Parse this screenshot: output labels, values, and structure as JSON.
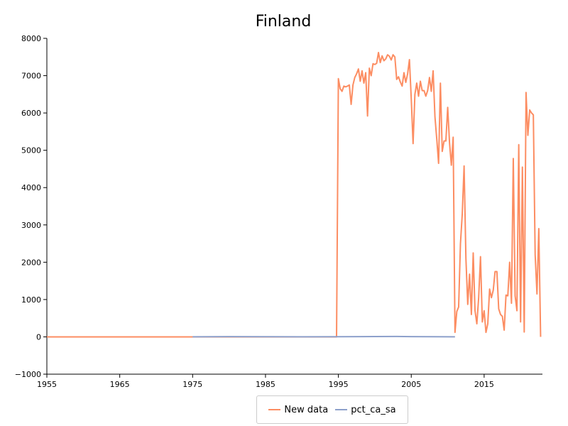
{
  "chart_data": {
    "type": "line",
    "title": "Finland",
    "xlabel": "",
    "ylabel": "",
    "xlim": [
      1955,
      2023
    ],
    "ylim": [
      -1000,
      8000
    ],
    "x_ticks": [
      1955,
      1965,
      1975,
      1985,
      1995,
      2005,
      2015
    ],
    "y_ticks": [
      -1000,
      0,
      1000,
      2000,
      3000,
      4000,
      5000,
      6000,
      7000,
      8000
    ],
    "grid": false,
    "legend_position": "bottom-center",
    "series": [
      {
        "name": "New data",
        "color": "#fc8d62",
        "points": [
          [
            1955,
            0
          ],
          [
            1975,
            0
          ],
          [
            1994.75,
            0
          ],
          [
            1995.0,
            6920
          ],
          [
            1995.25,
            6650
          ],
          [
            1995.5,
            6580
          ],
          [
            1995.75,
            6720
          ],
          [
            1996.0,
            6700
          ],
          [
            1996.25,
            6720
          ],
          [
            1996.5,
            6750
          ],
          [
            1996.75,
            6230
          ],
          [
            1997.0,
            6750
          ],
          [
            1997.25,
            6950
          ],
          [
            1997.5,
            7050
          ],
          [
            1997.75,
            7180
          ],
          [
            1998.0,
            6850
          ],
          [
            1998.25,
            7130
          ],
          [
            1998.5,
            6800
          ],
          [
            1998.75,
            7080
          ],
          [
            1999.0,
            5920
          ],
          [
            1999.25,
            7200
          ],
          [
            1999.5,
            7000
          ],
          [
            1999.75,
            7320
          ],
          [
            2000.0,
            7300
          ],
          [
            2000.25,
            7330
          ],
          [
            2000.5,
            7620
          ],
          [
            2000.75,
            7350
          ],
          [
            2001.0,
            7530
          ],
          [
            2001.25,
            7400
          ],
          [
            2001.5,
            7450
          ],
          [
            2001.75,
            7560
          ],
          [
            2002.0,
            7520
          ],
          [
            2002.25,
            7420
          ],
          [
            2002.5,
            7560
          ],
          [
            2002.75,
            7500
          ],
          [
            2003.0,
            6900
          ],
          [
            2003.25,
            6970
          ],
          [
            2003.5,
            6830
          ],
          [
            2003.75,
            6720
          ],
          [
            2004.0,
            7080
          ],
          [
            2004.25,
            6820
          ],
          [
            2004.5,
            7050
          ],
          [
            2004.75,
            7430
          ],
          [
            2005.0,
            6380
          ],
          [
            2005.25,
            5180
          ],
          [
            2005.5,
            6500
          ],
          [
            2005.75,
            6800
          ],
          [
            2006.0,
            6450
          ],
          [
            2006.25,
            6850
          ],
          [
            2006.5,
            6600
          ],
          [
            2006.75,
            6600
          ],
          [
            2007.0,
            6450
          ],
          [
            2007.25,
            6600
          ],
          [
            2007.5,
            6950
          ],
          [
            2007.75,
            6580
          ],
          [
            2008.0,
            7130
          ],
          [
            2008.25,
            5900
          ],
          [
            2008.5,
            5300
          ],
          [
            2008.75,
            4650
          ],
          [
            2009.0,
            6800
          ],
          [
            2009.25,
            4970
          ],
          [
            2009.5,
            5250
          ],
          [
            2009.75,
            5250
          ],
          [
            2010.0,
            6150
          ],
          [
            2010.25,
            5200
          ],
          [
            2010.5,
            4600
          ],
          [
            2010.75,
            5350
          ],
          [
            2011.0,
            120
          ],
          [
            2011.25,
            680
          ],
          [
            2011.5,
            800
          ],
          [
            2011.75,
            2500
          ],
          [
            2012.0,
            3300
          ],
          [
            2012.25,
            4580
          ],
          [
            2012.5,
            2100
          ],
          [
            2012.75,
            870
          ],
          [
            2013.0,
            1680
          ],
          [
            2013.25,
            600
          ],
          [
            2013.5,
            2250
          ],
          [
            2013.75,
            700
          ],
          [
            2014.0,
            350
          ],
          [
            2014.25,
            1050
          ],
          [
            2014.5,
            2150
          ],
          [
            2014.75,
            400
          ],
          [
            2015.0,
            700
          ],
          [
            2015.25,
            120
          ],
          [
            2015.5,
            350
          ],
          [
            2015.75,
            1280
          ],
          [
            2016.0,
            1050
          ],
          [
            2016.25,
            1250
          ],
          [
            2016.5,
            1750
          ],
          [
            2016.75,
            1750
          ],
          [
            2017.0,
            750
          ],
          [
            2017.25,
            600
          ],
          [
            2017.5,
            550
          ],
          [
            2017.75,
            180
          ],
          [
            2018.0,
            1120
          ],
          [
            2018.25,
            1100
          ],
          [
            2018.5,
            2000
          ],
          [
            2018.75,
            900
          ],
          [
            2019.0,
            4780
          ],
          [
            2019.25,
            1100
          ],
          [
            2019.5,
            700
          ],
          [
            2019.75,
            5150
          ],
          [
            2020.0,
            400
          ],
          [
            2020.25,
            4550
          ],
          [
            2020.5,
            130
          ],
          [
            2020.75,
            6550
          ],
          [
            2021.0,
            5400
          ],
          [
            2021.25,
            6080
          ],
          [
            2021.5,
            6000
          ],
          [
            2021.75,
            5950
          ],
          [
            2022.0,
            2200
          ],
          [
            2022.25,
            1150
          ],
          [
            2022.5,
            2900
          ],
          [
            2022.75,
            0
          ]
        ]
      },
      {
        "name": "pct_ca_sa",
        "color": "#8da0cb",
        "points": [
          [
            1975,
            2
          ],
          [
            1980,
            5
          ],
          [
            1985,
            3
          ],
          [
            1990,
            2
          ],
          [
            1995,
            3
          ],
          [
            1998,
            5
          ],
          [
            2000,
            8
          ],
          [
            2003,
            10
          ],
          [
            2005,
            6
          ],
          [
            2008,
            4
          ],
          [
            2011,
            2
          ]
        ]
      }
    ]
  }
}
